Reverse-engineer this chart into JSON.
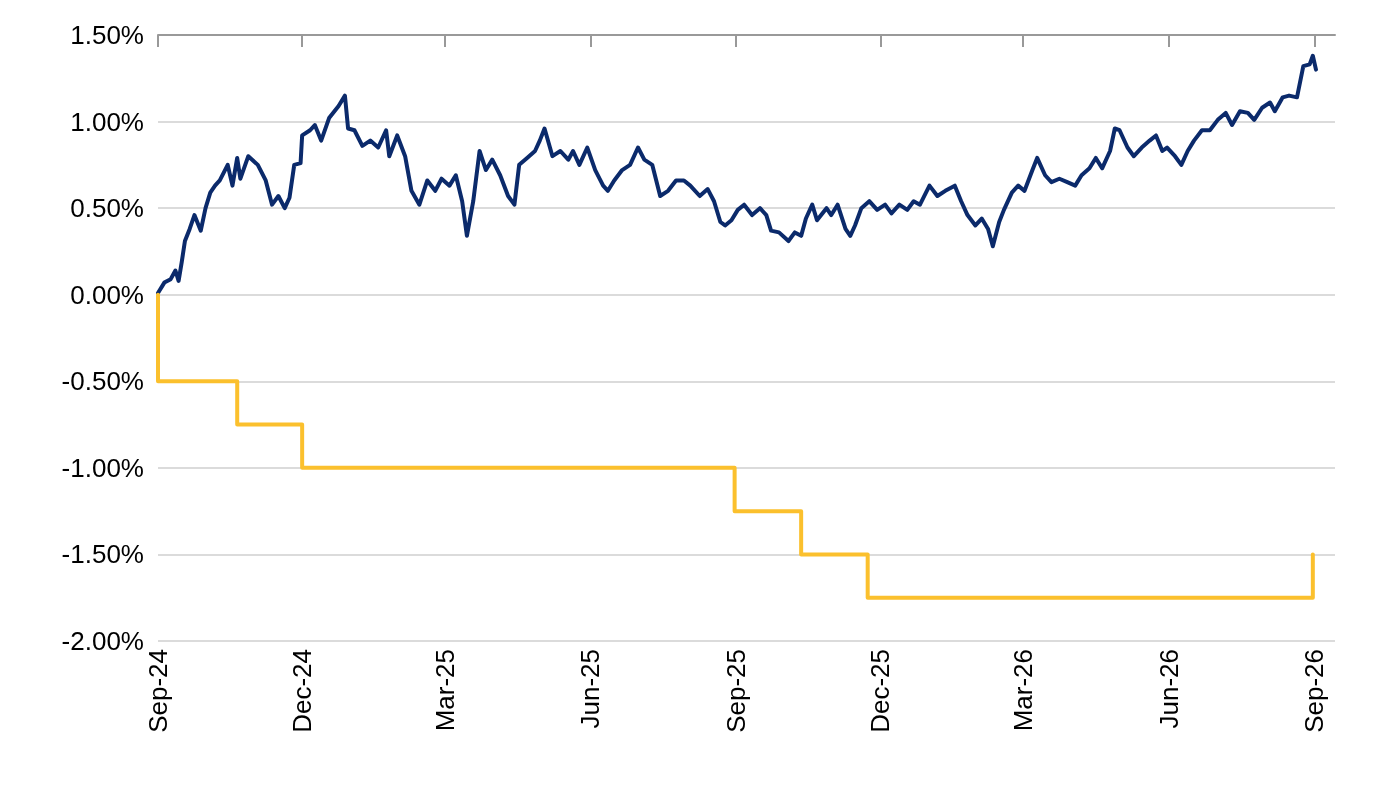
{
  "chart_data": {
    "type": "line",
    "xlim": [
      "2024-09-18",
      "2026-10-01"
    ],
    "xticks": [
      {
        "value": "2024-09-18",
        "label": "Sep-24"
      },
      {
        "value": "2024-12-18",
        "label": "Dec-24"
      },
      {
        "value": "2025-03-18",
        "label": "Mar-25"
      },
      {
        "value": "2025-06-18",
        "label": "Jun-25"
      },
      {
        "value": "2025-09-18",
        "label": "Sep-25"
      },
      {
        "value": "2025-12-18",
        "label": "Dec-25"
      },
      {
        "value": "2026-03-18",
        "label": "Mar-26"
      },
      {
        "value": "2026-06-18",
        "label": "Jun-26"
      },
      {
        "value": "2026-09-18",
        "label": "Sep-26"
      }
    ],
    "ylim": [
      -2,
      1.5
    ],
    "yticks": [
      {
        "value": -2,
        "label": "-2.00%"
      },
      {
        "value": -1.5,
        "label": "-1.50%"
      },
      {
        "value": -1,
        "label": "-1.00%"
      },
      {
        "value": -0.5,
        "label": "-0.50%"
      },
      {
        "value": 0,
        "label": "0.00%"
      },
      {
        "value": 0.5,
        "label": "0.50%"
      },
      {
        "value": 1,
        "label": "1.00%"
      },
      {
        "value": 1.5,
        "label": "1.50%"
      }
    ],
    "grid": "y",
    "marker": "none",
    "line_style": "solid",
    "series": [
      {
        "color": "#0b2a6b",
        "x": [
          "2024-09-18",
          "2024-09-22",
          "2024-09-26",
          "2024-09-29",
          "2024-10-01",
          "2024-10-03",
          "2024-10-05",
          "2024-10-08",
          "2024-10-11",
          "2024-10-15",
          "2024-10-18",
          "2024-10-21",
          "2024-10-24",
          "2024-10-27",
          "2024-11-01",
          "2024-11-04",
          "2024-11-07",
          "2024-11-09",
          "2024-11-14",
          "2024-11-20",
          "2024-11-25",
          "2024-11-29",
          "2024-12-03",
          "2024-12-07",
          "2024-12-10",
          "2024-12-13",
          "2024-12-17",
          "2024-12-18",
          "2024-12-23",
          "2024-12-26",
          "2024-12-30",
          "2025-01-04",
          "2025-01-10",
          "2025-01-14",
          "2025-01-16",
          "2025-01-20",
          "2025-01-25",
          "2025-01-30",
          "2025-02-04",
          "2025-02-09",
          "2025-02-11",
          "2025-02-16",
          "2025-02-21",
          "2025-02-25",
          "2025-03-02",
          "2025-03-07",
          "2025-03-12",
          "2025-03-16",
          "2025-03-21",
          "2025-03-25",
          "2025-03-29",
          "2025-04-01",
          "2025-04-05",
          "2025-04-09",
          "2025-04-13",
          "2025-04-17",
          "2025-04-22",
          "2025-04-27",
          "2025-05-01",
          "2025-05-04",
          "2025-05-09",
          "2025-05-14",
          "2025-05-17",
          "2025-05-20",
          "2025-05-25",
          "2025-05-30",
          "2025-06-04",
          "2025-06-07",
          "2025-06-11",
          "2025-06-16",
          "2025-06-21",
          "2025-06-26",
          "2025-06-29",
          "2025-07-03",
          "2025-07-08",
          "2025-07-13",
          "2025-07-18",
          "2025-07-22",
          "2025-07-27",
          "2025-08-01",
          "2025-08-06",
          "2025-08-11",
          "2025-08-16",
          "2025-08-20",
          "2025-08-26",
          "2025-08-31",
          "2025-09-04",
          "2025-09-08",
          "2025-09-11",
          "2025-09-15",
          "2025-09-19",
          "2025-09-23",
          "2025-09-28",
          "2025-10-03",
          "2025-10-07",
          "2025-10-10",
          "2025-10-15",
          "2025-10-21",
          "2025-10-25",
          "2025-10-29",
          "2025-11-01",
          "2025-11-05",
          "2025-11-08",
          "2025-11-14",
          "2025-11-17",
          "2025-11-21",
          "2025-11-26",
          "2025-11-29",
          "2025-12-02",
          "2025-12-06",
          "2025-12-11",
          "2025-12-16",
          "2025-12-21",
          "2025-12-25",
          "2025-12-30",
          "2026-01-04",
          "2026-01-08",
          "2026-01-12",
          "2026-01-18",
          "2026-01-23",
          "2026-01-28",
          "2026-02-03",
          "2026-02-07",
          "2026-02-11",
          "2026-02-16",
          "2026-02-20",
          "2026-02-24",
          "2026-02-27",
          "2026-03-03",
          "2026-03-06",
          "2026-03-11",
          "2026-03-15",
          "2026-03-19",
          "2026-03-24",
          "2026-03-27",
          "2026-04-01",
          "2026-04-05",
          "2026-04-10",
          "2026-04-15",
          "2026-04-20",
          "2026-04-24",
          "2026-04-29",
          "2026-05-03",
          "2026-05-07",
          "2026-05-12",
          "2026-05-15",
          "2026-05-18",
          "2026-05-23",
          "2026-05-27",
          "2026-06-01",
          "2026-06-06",
          "2026-06-10",
          "2026-06-14",
          "2026-06-17",
          "2026-06-22",
          "2026-06-26",
          "2026-06-30",
          "2026-07-04",
          "2026-07-09",
          "2026-07-14",
          "2026-07-19",
          "2026-07-24",
          "2026-07-28",
          "2026-08-02",
          "2026-08-07",
          "2026-08-11",
          "2026-08-16",
          "2026-08-21",
          "2026-08-24",
          "2026-08-29",
          "2026-09-02",
          "2026-09-07",
          "2026-09-11",
          "2026-09-15",
          "2026-09-17",
          "2026-09-19"
        ],
        "values": [
          0.01,
          0.07,
          0.09,
          0.14,
          0.08,
          0.19,
          0.31,
          0.38,
          0.46,
          0.37,
          0.5,
          0.59,
          0.63,
          0.66,
          0.75,
          0.63,
          0.79,
          0.67,
          0.8,
          0.75,
          0.66,
          0.52,
          0.57,
          0.5,
          0.56,
          0.75,
          0.76,
          0.92,
          0.95,
          0.98,
          0.89,
          1.02,
          1.09,
          1.15,
          0.96,
          0.95,
          0.86,
          0.89,
          0.85,
          0.95,
          0.8,
          0.92,
          0.8,
          0.6,
          0.52,
          0.66,
          0.6,
          0.67,
          0.63,
          0.69,
          0.54,
          0.34,
          0.54,
          0.83,
          0.72,
          0.78,
          0.69,
          0.57,
          0.52,
          0.75,
          0.79,
          0.83,
          0.89,
          0.96,
          0.8,
          0.83,
          0.78,
          0.83,
          0.75,
          0.85,
          0.72,
          0.63,
          0.6,
          0.66,
          0.72,
          0.75,
          0.85,
          0.78,
          0.75,
          0.57,
          0.6,
          0.66,
          0.66,
          0.63,
          0.57,
          0.61,
          0.54,
          0.42,
          0.4,
          0.43,
          0.49,
          0.52,
          0.46,
          0.5,
          0.46,
          0.37,
          0.36,
          0.31,
          0.36,
          0.34,
          0.44,
          0.52,
          0.43,
          0.5,
          0.46,
          0.52,
          0.38,
          0.34,
          0.4,
          0.5,
          0.54,
          0.49,
          0.52,
          0.47,
          0.52,
          0.49,
          0.54,
          0.52,
          0.63,
          0.57,
          0.6,
          0.63,
          0.54,
          0.46,
          0.4,
          0.44,
          0.38,
          0.28,
          0.42,
          0.49,
          0.59,
          0.63,
          0.6,
          0.72,
          0.79,
          0.69,
          0.65,
          0.67,
          0.65,
          0.63,
          0.69,
          0.73,
          0.79,
          0.73,
          0.83,
          0.96,
          0.95,
          0.85,
          0.8,
          0.85,
          0.89,
          0.92,
          0.83,
          0.85,
          0.8,
          0.75,
          0.83,
          0.89,
          0.95,
          0.95,
          1.01,
          1.05,
          0.98,
          1.06,
          1.05,
          1.01,
          1.08,
          1.11,
          1.06,
          1.14,
          1.15,
          1.14,
          1.32,
          1.33,
          1.38,
          1.3
        ]
      },
      {
        "type": "step",
        "color": "#fbc02d",
        "x": [
          "2024-09-18",
          "2024-09-18",
          "2024-11-07",
          "2024-12-18",
          "2025-09-17",
          "2025-10-29",
          "2025-12-10",
          "2026-09-17"
        ],
        "values": [
          0,
          -0.5,
          -0.75,
          -1,
          -1.25,
          -1.5,
          -1.75,
          -1.5
        ]
      }
    ]
  }
}
